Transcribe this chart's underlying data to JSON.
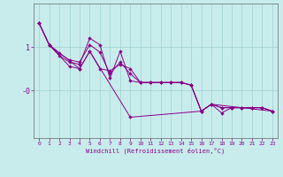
{
  "xlabel": "Windchill (Refroidissement éolien,°C)",
  "background_color": "#c8ecec",
  "grid_color": "#a0d0d0",
  "line_color": "#880088",
  "xlim": [
    -0.5,
    23.5
  ],
  "ylim": [
    -1.1,
    2.0
  ],
  "ytick_positions": [
    1.0,
    0.0
  ],
  "ytick_labels": [
    "1",
    "-0"
  ],
  "xticks": [
    0,
    1,
    2,
    3,
    4,
    5,
    6,
    7,
    8,
    9,
    10,
    11,
    12,
    13,
    14,
    15,
    16,
    17,
    18,
    19,
    20,
    21,
    22,
    23
  ],
  "line1_x": [
    0,
    1,
    3,
    4,
    5,
    6,
    7,
    8,
    9,
    10,
    11,
    12,
    13,
    14,
    15,
    16,
    17,
    18,
    19,
    20,
    21,
    22,
    23
  ],
  "line1_y": [
    1.55,
    1.05,
    0.55,
    0.5,
    0.9,
    0.5,
    0.45,
    0.6,
    0.5,
    0.18,
    0.18,
    0.18,
    0.18,
    0.18,
    0.12,
    -0.48,
    -0.32,
    -0.4,
    -0.4,
    -0.4,
    -0.4,
    -0.4,
    -0.48
  ],
  "line2_x": [
    0,
    1,
    2,
    3,
    4,
    5,
    6,
    7,
    8,
    9,
    10,
    11,
    12,
    13,
    14,
    15,
    16,
    17,
    18,
    19,
    20,
    21,
    22,
    23
  ],
  "line2_y": [
    1.55,
    1.05,
    0.85,
    0.7,
    0.65,
    1.05,
    0.88,
    0.38,
    0.65,
    0.38,
    0.18,
    0.18,
    0.18,
    0.18,
    0.18,
    0.12,
    -0.48,
    -0.32,
    -0.4,
    -0.4,
    -0.4,
    -0.4,
    -0.4,
    -0.48
  ],
  "line3_x": [
    0,
    1,
    4,
    5,
    9,
    16,
    17,
    23
  ],
  "line3_y": [
    1.55,
    1.05,
    0.5,
    0.9,
    -0.62,
    -0.48,
    -0.32,
    -0.48
  ],
  "line4_x": [
    0,
    1,
    2,
    3,
    4,
    5,
    6,
    7,
    8,
    9,
    10,
    11,
    12,
    13,
    14,
    15,
    16,
    17,
    18,
    19,
    20,
    21,
    22,
    23
  ],
  "line4_y": [
    1.55,
    1.05,
    0.8,
    0.65,
    0.6,
    1.2,
    1.05,
    0.28,
    0.9,
    0.22,
    0.18,
    0.18,
    0.18,
    0.18,
    0.18,
    0.12,
    -0.48,
    -0.32,
    -0.52,
    -0.4,
    -0.4,
    -0.4,
    -0.4,
    -0.48
  ]
}
